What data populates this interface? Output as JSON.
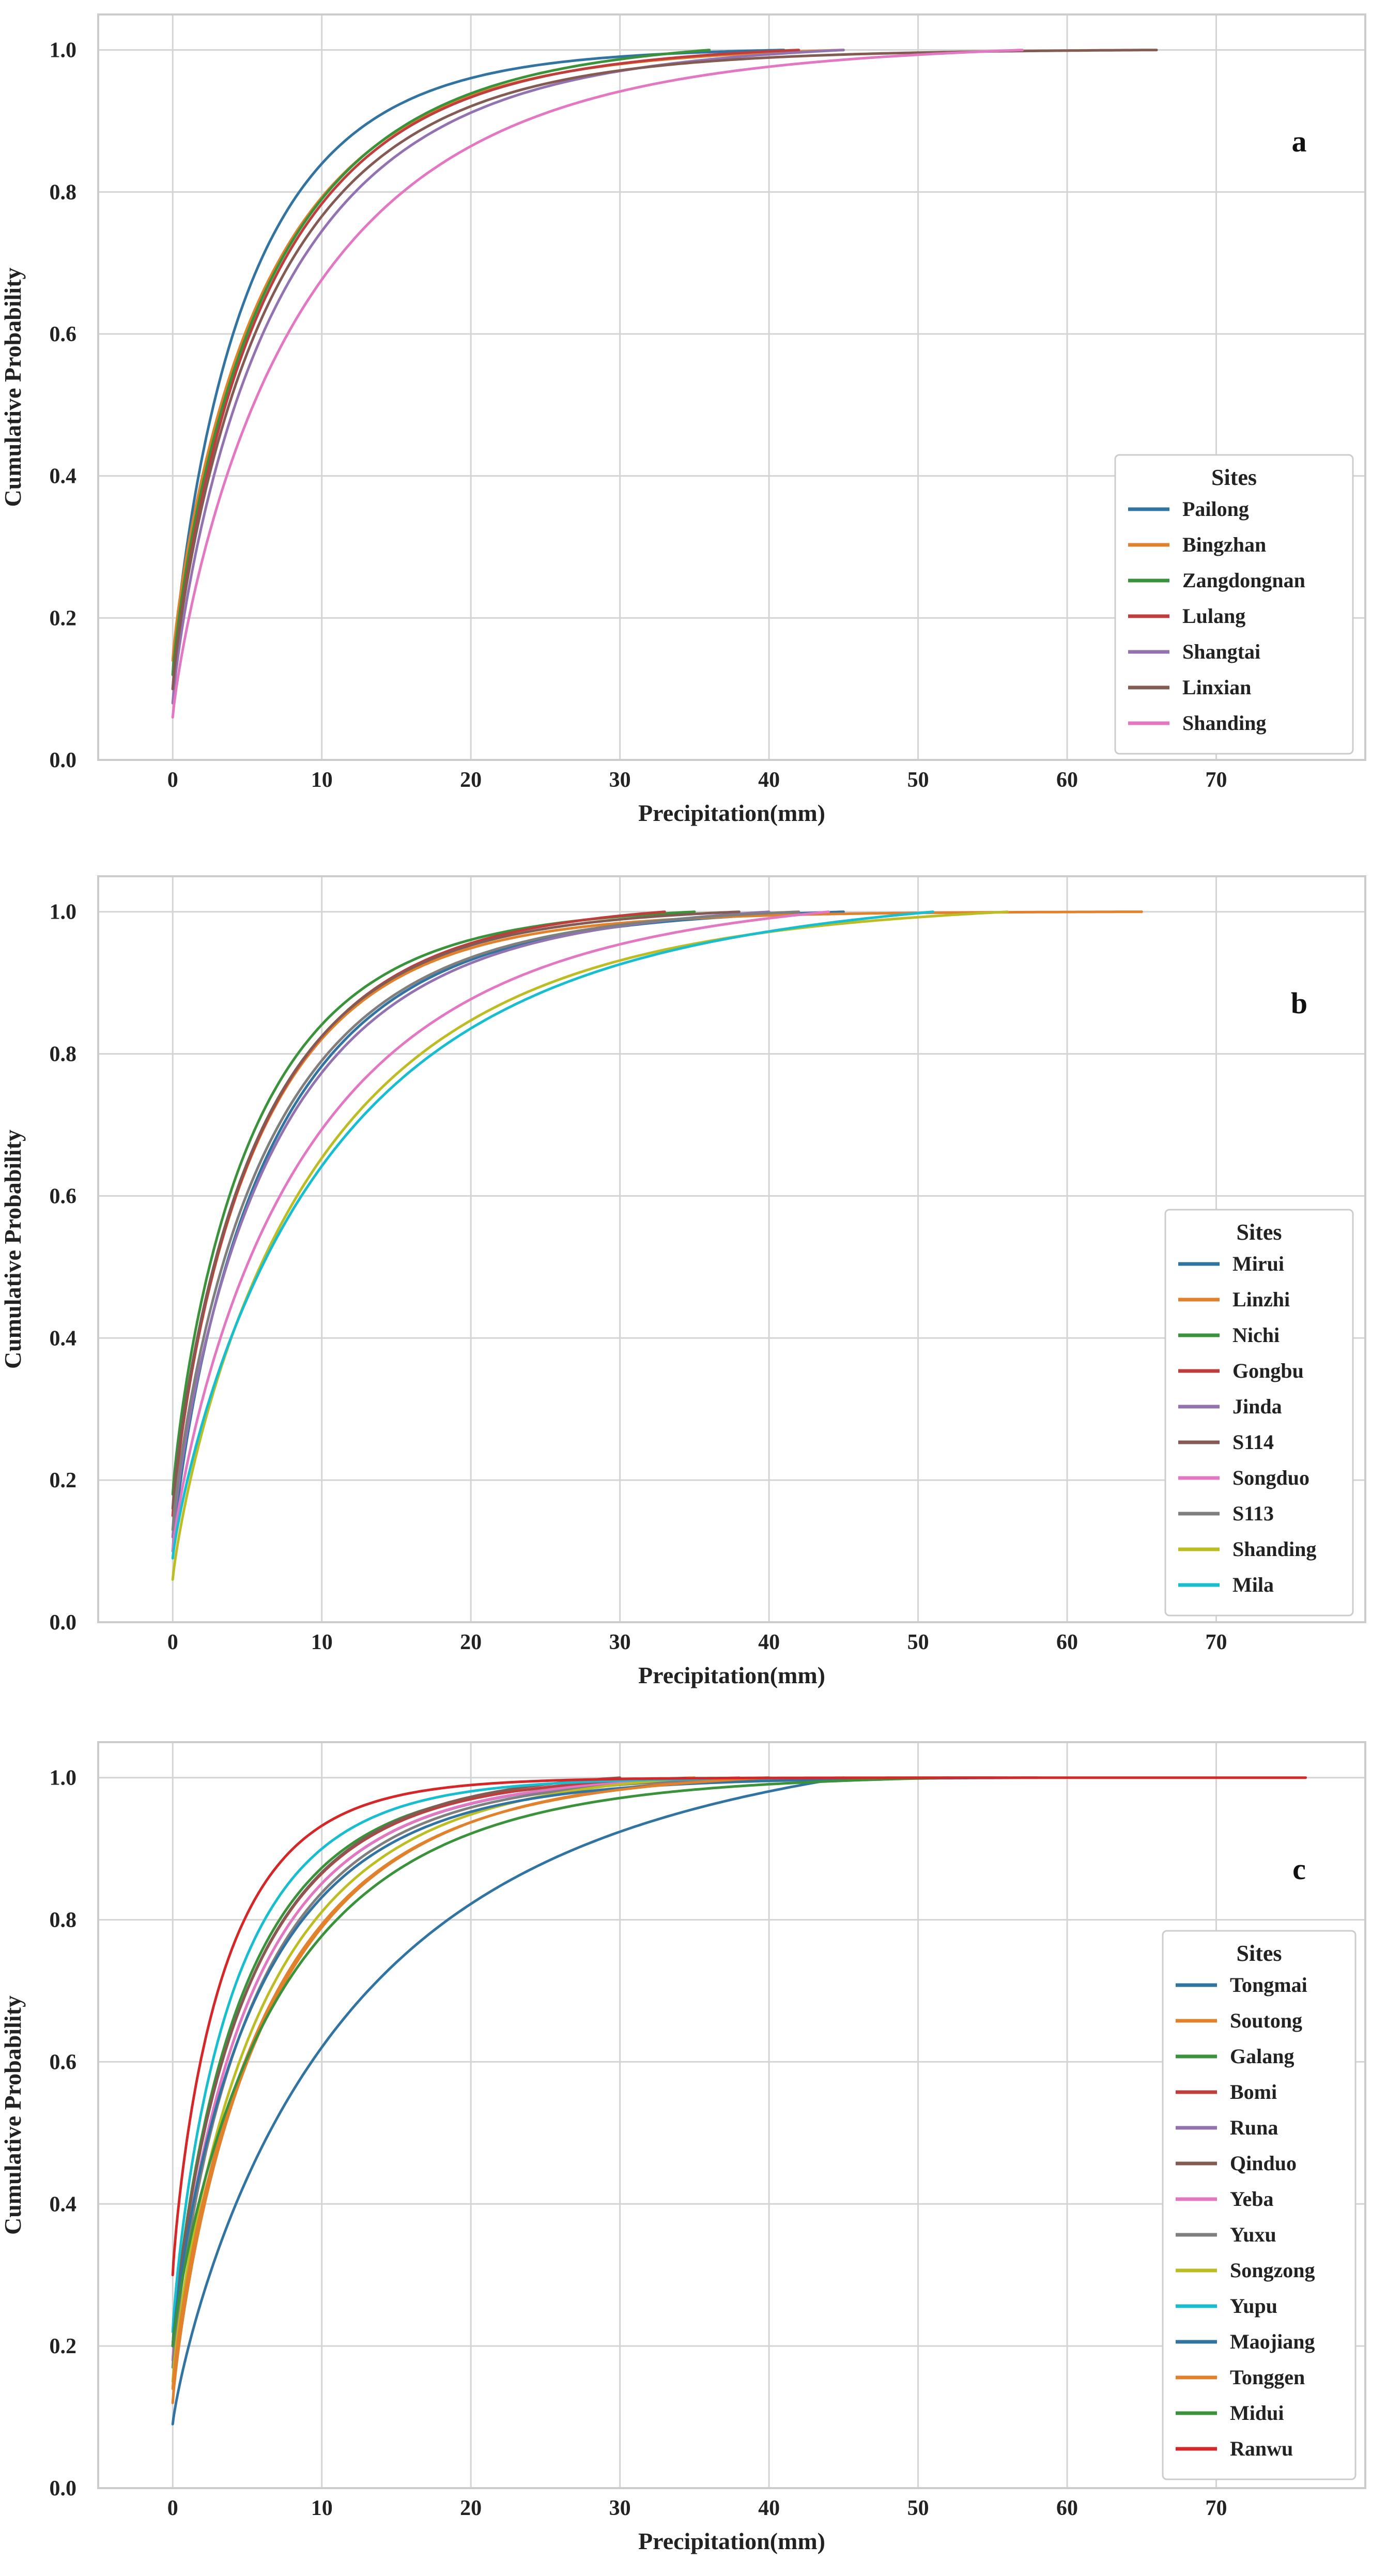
{
  "chart_data": [
    {
      "type": "line",
      "panel_label": "a",
      "xlabel": "Precipitation(mm)",
      "ylabel": "Cumulative Probability",
      "xlim": [
        -5,
        80
      ],
      "ylim": [
        0,
        1.05
      ],
      "xticks": [
        0,
        10,
        20,
        30,
        40,
        50,
        60,
        70
      ],
      "yticks": [
        "0.0",
        "0.2",
        "0.4",
        "0.6",
        "0.8",
        "1.0"
      ],
      "grid": true,
      "legend_title": "Sites",
      "legend_position": "lower-right",
      "series": [
        {
          "name": "Pailong",
          "color": "#3274a1",
          "y0": 0.12,
          "k": 0.24,
          "max": 41
        },
        {
          "name": "Bingzhan",
          "color": "#e1812c",
          "y0": 0.14,
          "k": 0.2,
          "max": 45
        },
        {
          "name": "Zangdongnan",
          "color": "#3a923a",
          "y0": 0.12,
          "k": 0.2,
          "max": 36
        },
        {
          "name": "Lulang",
          "color": "#c03d3e",
          "y0": 0.1,
          "k": 0.2,
          "max": 42
        },
        {
          "name": "Shangtai",
          "color": "#9372b2",
          "y0": 0.08,
          "k": 0.18,
          "max": 45
        },
        {
          "name": "Linxian",
          "color": "#845b53",
          "y0": 0.1,
          "k": 0.19,
          "max": 66
        },
        {
          "name": "Shanding",
          "color": "#e377c2",
          "y0": 0.06,
          "k": 0.15,
          "max": 57
        }
      ]
    },
    {
      "type": "line",
      "panel_label": "b",
      "xlabel": "Precipitation(mm)",
      "ylabel": "Cumulative Probability",
      "xlim": [
        -5,
        80
      ],
      "ylim": [
        0,
        1.05
      ],
      "xticks": [
        0,
        10,
        20,
        30,
        40,
        50,
        60,
        70
      ],
      "yticks": [
        "0.0",
        "0.2",
        "0.4",
        "0.6",
        "0.8",
        "1.0"
      ],
      "grid": true,
      "legend_title": "Sites",
      "legend_position": "lower-right",
      "series": [
        {
          "name": "Mirui",
          "color": "#3274a1",
          "y0": 0.1,
          "k": 0.2,
          "max": 45
        },
        {
          "name": "Linzhi",
          "color": "#e1812c",
          "y0": 0.15,
          "k": 0.22,
          "max": 65
        },
        {
          "name": "Nichi",
          "color": "#3a923a",
          "y0": 0.18,
          "k": 0.23,
          "max": 35
        },
        {
          "name": "Gongbu",
          "color": "#c03d3e",
          "y0": 0.15,
          "k": 0.22,
          "max": 33
        },
        {
          "name": "Jinda",
          "color": "#9372b2",
          "y0": 0.12,
          "k": 0.19,
          "max": 40
        },
        {
          "name": "S114",
          "color": "#845b53",
          "y0": 0.16,
          "k": 0.22,
          "max": 38
        },
        {
          "name": "Songduo",
          "color": "#e377c2",
          "y0": 0.1,
          "k": 0.15,
          "max": 44
        },
        {
          "name": "S113",
          "color": "#7f7f7f",
          "y0": 0.13,
          "k": 0.2,
          "max": 42
        },
        {
          "name": "Shanding",
          "color": "#bcbd22",
          "y0": 0.06,
          "k": 0.14,
          "max": 56
        },
        {
          "name": "Mila",
          "color": "#17becf",
          "y0": 0.09,
          "k": 0.13,
          "max": 51
        }
      ]
    },
    {
      "type": "line",
      "panel_label": "c",
      "xlabel": "Precipitation(mm)",
      "ylabel": "Cumulative Probability",
      "xlim": [
        -5,
        80
      ],
      "ylim": [
        0,
        1.05
      ],
      "xticks": [
        0,
        10,
        20,
        30,
        40,
        50,
        60,
        70
      ],
      "yticks": [
        "0.0",
        "0.2",
        "0.4",
        "0.6",
        "0.8",
        "1.0"
      ],
      "grid": true,
      "legend_title": "Sites",
      "legend_position": "lower-right",
      "series": [
        {
          "name": "Tongmai",
          "color": "#3274a1",
          "y0": 0.09,
          "k": 0.12,
          "max": 45
        },
        {
          "name": "Soutong",
          "color": "#e1812c",
          "y0": 0.12,
          "k": 0.2,
          "max": 38
        },
        {
          "name": "Galang",
          "color": "#3a923a",
          "y0": 0.2,
          "k": 0.26,
          "max": 55
        },
        {
          "name": "Bomi",
          "color": "#c03d3e",
          "y0": 0.2,
          "k": 0.25,
          "max": 35
        },
        {
          "name": "Runa",
          "color": "#9372b2",
          "y0": 0.18,
          "k": 0.24,
          "max": 40
        },
        {
          "name": "Qinduo",
          "color": "#845b53",
          "y0": 0.2,
          "k": 0.25,
          "max": 30
        },
        {
          "name": "Yeba",
          "color": "#e377c2",
          "y0": 0.18,
          "k": 0.24,
          "max": 38
        },
        {
          "name": "Yuxu",
          "color": "#7f7f7f",
          "y0": 0.17,
          "k": 0.23,
          "max": 40
        },
        {
          "name": "Songzong",
          "color": "#bcbd22",
          "y0": 0.15,
          "k": 0.21,
          "max": 35
        },
        {
          "name": "Yupu",
          "color": "#17becf",
          "y0": 0.22,
          "k": 0.29,
          "max": 56
        },
        {
          "name": "Maojiang",
          "color": "#3274a1",
          "y0": 0.2,
          "k": 0.22,
          "max": 58
        },
        {
          "name": "Tonggen",
          "color": "#e1812c",
          "y0": 0.14,
          "k": 0.2,
          "max": 40
        },
        {
          "name": "Midui",
          "color": "#3a923a",
          "y0": 0.2,
          "k": 0.18,
          "max": 52
        },
        {
          "name": "Ranwu",
          "color": "#d62728",
          "y0": 0.3,
          "k": 0.33,
          "max": 76
        }
      ]
    }
  ]
}
